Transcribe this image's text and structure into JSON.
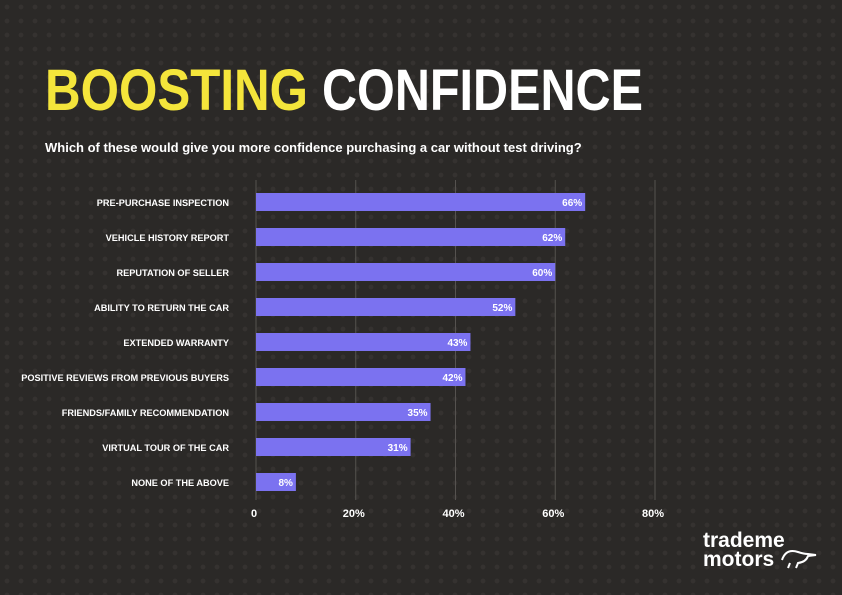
{
  "chart_data": {
    "type": "barh",
    "title": [
      "BOOSTING",
      "CONFIDENCE"
    ],
    "subtitle": "Which of these would give you more confidence purchasing a car without test driving?",
    "categories": [
      "PRE-PURCHASE INSPECTION",
      "VEHICLE HISTORY REPORT",
      "REPUTATION OF SELLER",
      "ABILITY TO RETURN THE CAR",
      "EXTENDED WARRANTY",
      "POSITIVE  REVIEWS FROM PREVIOUS BUYERS",
      "FRIENDS/FAMILY RECOMMENDATION",
      "VIRTUAL TOUR OF THE CAR",
      "NONE OF THE ABOVE"
    ],
    "values": [
      66,
      62,
      60,
      52,
      43,
      42,
      35,
      31,
      8
    ],
    "value_labels": [
      "66%",
      "62%",
      "60%",
      "52%",
      "43%",
      "42%",
      "35%",
      "31%",
      "8%"
    ],
    "color": "#7b72f0",
    "xlim": [
      0,
      80
    ],
    "xticks": [
      0,
      {
        "value": 20,
        "label": "20%"
      },
      {
        "value": 40,
        "label": "40%"
      },
      {
        "value": 60,
        "label": "60%"
      },
      {
        "value": 80,
        "label": "80%"
      }
    ],
    "grid": true
  },
  "logo": [
    "trademe",
    "motors"
  ]
}
